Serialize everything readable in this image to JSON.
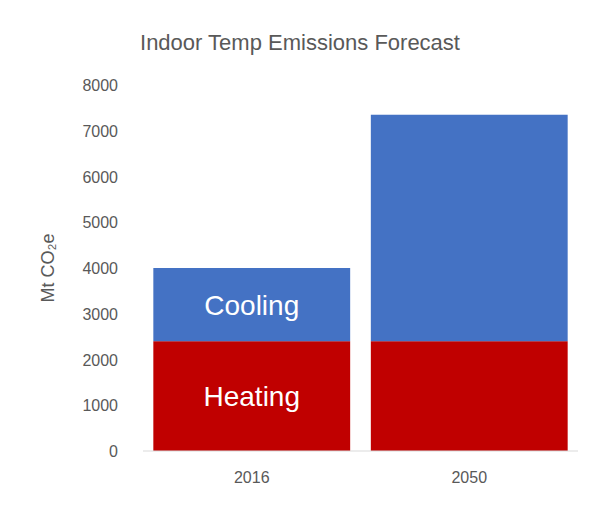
{
  "chart_data": {
    "type": "bar",
    "stacked": true,
    "title": "Indoor Temp Emissions Forecast",
    "y_label": "Mt CO₂e",
    "categories": [
      "2016",
      "2050"
    ],
    "series": [
      {
        "name": "Heating",
        "color": "#c00000",
        "values": [
          2400,
          2400
        ]
      },
      {
        "name": "Cooling",
        "color": "#4472c4",
        "values": [
          1600,
          4950
        ]
      }
    ],
    "ylim": [
      0,
      8000
    ],
    "yticks": [
      0,
      1000,
      2000,
      3000,
      4000,
      5000,
      6000,
      7000,
      8000
    ],
    "grid": false
  }
}
